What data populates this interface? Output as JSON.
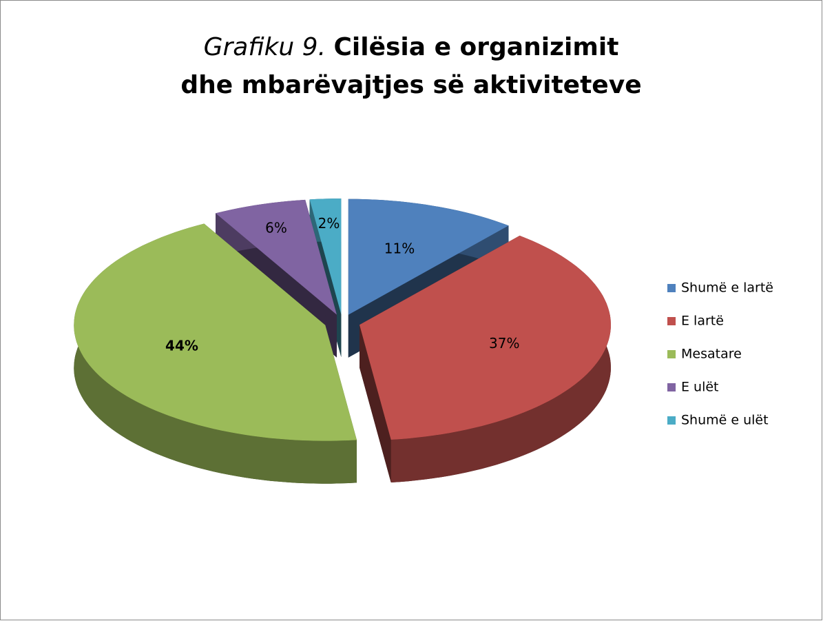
{
  "chart_data": {
    "type": "pie3d",
    "title": {
      "prefix": "Grafiku 9.",
      "text": "Cilësia e organizimit dhe mbarëvajtjes së aktiviteteve"
    },
    "categories": [
      "Shumë e lartë",
      "E lartë",
      "Mesatare",
      "E ulët",
      "Shumë e ulët"
    ],
    "values": [
      11,
      37,
      44,
      6,
      2
    ],
    "value_labels": [
      "11%",
      "37%",
      "44%",
      "6%",
      "2%"
    ],
    "colors": [
      "#4f81bd",
      "#c0504d",
      "#9bbb59",
      "#8064a2",
      "#4bacc6"
    ],
    "legend": "right"
  }
}
